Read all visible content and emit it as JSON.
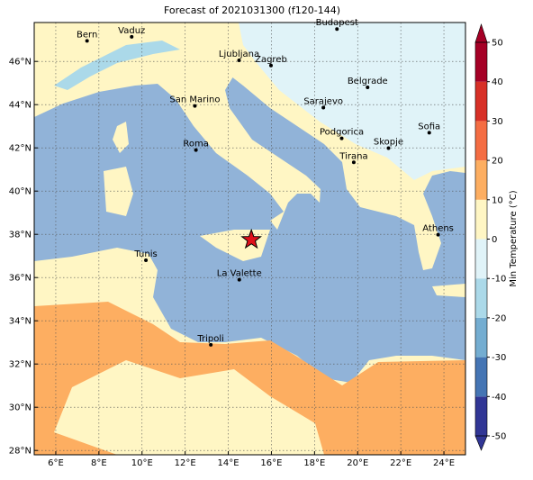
{
  "title": "Forecast of 2021031300 (f120-144)",
  "map": {
    "lonlim": [
      5,
      25
    ],
    "latlim": [
      27.8,
      47.8
    ],
    "lonticks": [
      {
        "value": 6,
        "label": "6°E"
      },
      {
        "value": 8,
        "label": "8°E"
      },
      {
        "value": 10,
        "label": "10°E"
      },
      {
        "value": 12,
        "label": "12°E"
      },
      {
        "value": 14,
        "label": "14°E"
      },
      {
        "value": 16,
        "label": "16°E"
      },
      {
        "value": 18,
        "label": "18°E"
      },
      {
        "value": 20,
        "label": "20°E"
      },
      {
        "value": 22,
        "label": "22°E"
      },
      {
        "value": 24,
        "label": "24°E"
      }
    ],
    "latticks": [
      {
        "value": 28,
        "label": "28°N"
      },
      {
        "value": 30,
        "label": "30°N"
      },
      {
        "value": 32,
        "label": "32°N"
      },
      {
        "value": 34,
        "label": "34°N"
      },
      {
        "value": 36,
        "label": "36°N"
      },
      {
        "value": 38,
        "label": "38°N"
      },
      {
        "value": 40,
        "label": "40°N"
      },
      {
        "value": 42,
        "label": "42°N"
      },
      {
        "value": 44,
        "label": "44°N"
      },
      {
        "value": 46,
        "label": "46°N"
      }
    ],
    "grid": true,
    "cities": [
      {
        "label": "Bern",
        "lon": 7.45,
        "lat": 46.95
      },
      {
        "label": "Vaduz",
        "lon": 9.52,
        "lat": 47.14
      },
      {
        "label": "Budapest",
        "lon": 19.04,
        "lat": 47.5
      },
      {
        "label": "Ljubljana",
        "lon": 14.5,
        "lat": 46.05
      },
      {
        "label": "Zagreb",
        "lon": 15.98,
        "lat": 45.81
      },
      {
        "label": "Belgrade",
        "lon": 20.46,
        "lat": 44.8
      },
      {
        "label": "Sarajevo",
        "lon": 18.41,
        "lat": 43.86
      },
      {
        "label": "San Marino",
        "lon": 12.45,
        "lat": 43.94
      },
      {
        "label": "Sofia",
        "lon": 23.32,
        "lat": 42.7
      },
      {
        "label": "Podgorica",
        "lon": 19.26,
        "lat": 42.44
      },
      {
        "label": "Skopje",
        "lon": 21.43,
        "lat": 41.99
      },
      {
        "label": "Roma",
        "lon": 12.5,
        "lat": 41.9
      },
      {
        "label": "Tirana",
        "lon": 19.82,
        "lat": 41.33
      },
      {
        "label": "Athens",
        "lon": 23.73,
        "lat": 37.98
      },
      {
        "label": "Tunis",
        "lon": 10.18,
        "lat": 36.8
      },
      {
        "label": "La Valette",
        "lon": 14.51,
        "lat": 35.9
      },
      {
        "label": "Tripoli",
        "lon": 13.19,
        "lat": 32.89
      }
    ],
    "star": {
      "lon": 15.07,
      "lat": 37.75
    }
  },
  "colorbar": {
    "label": "Min Temperature (°C)",
    "levels": [
      -50,
      -40,
      -30,
      -20,
      -10,
      0,
      10,
      20,
      30,
      40,
      50
    ],
    "colors": [
      "#313695",
      "#4575b4",
      "#74add1",
      "#abd9e9",
      "#e0f3f8",
      "#fff6c4",
      "#fdae61",
      "#f46d43",
      "#d73027",
      "#a50026"
    ],
    "ticks": [
      -50,
      -40,
      -30,
      -20,
      -10,
      0,
      10,
      20,
      30,
      40,
      50
    ]
  }
}
